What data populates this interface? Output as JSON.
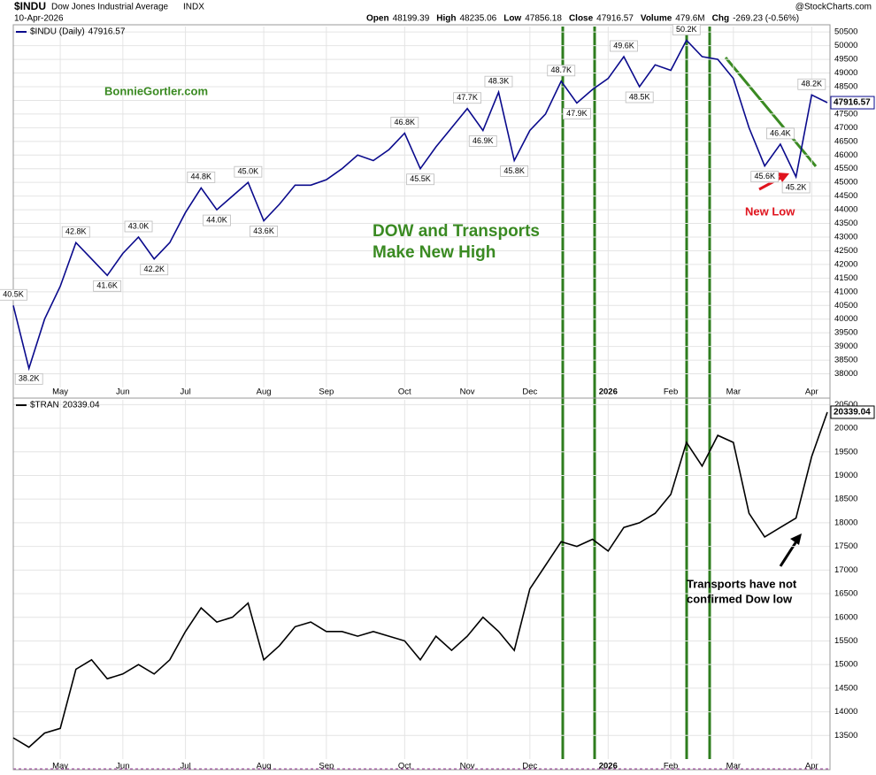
{
  "header": {
    "symbol": "$INDU",
    "name": "Dow Jones Industrial Average",
    "exchange": "INDX",
    "date": "10-Apr-2026",
    "source": "@StockCharts.com",
    "quote": [
      {
        "label": "Open",
        "value": 48199.39
      },
      {
        "label": "High",
        "value": 48235.06
      },
      {
        "label": "Low",
        "value": 47856.18
      },
      {
        "label": "Close",
        "value": 47916.57
      },
      {
        "label": "Volume",
        "value": "479.6M"
      },
      {
        "label": "Chg",
        "value": "-269.23 (-0.56%)"
      }
    ]
  },
  "chart_data": [
    {
      "type": "line",
      "categories": [
        null,
        null,
        null,
        "May",
        null,
        null,
        null,
        "Jun",
        null,
        null,
        null,
        "Jul",
        null,
        null,
        null,
        null,
        "Aug",
        null,
        null,
        null,
        "Sep",
        null,
        null,
        null,
        null,
        "Oct",
        null,
        null,
        null,
        "Nov",
        null,
        null,
        null,
        "Dec",
        null,
        null,
        null,
        null,
        "2026",
        null,
        null,
        null,
        "Feb",
        null,
        null,
        null,
        "Mar",
        null,
        null,
        null,
        null,
        "Apr",
        null
      ],
      "series": [
        {
          "name": "$INDU (Daily)",
          "color": "#0a0a8c",
          "values": [
            40500,
            38200,
            40000,
            41200,
            42800,
            42200,
            41600,
            42400,
            43000,
            42200,
            42800,
            43900,
            44800,
            44000,
            44500,
            45000,
            43600,
            44200,
            44900,
            44900,
            45100,
            45500,
            46000,
            45800,
            46200,
            46800,
            45500,
            46300,
            47000,
            47700,
            46900,
            48300,
            45800,
            46900,
            47500,
            48700,
            47900,
            48400,
            48800,
            49600,
            48500,
            49300,
            49100,
            50200,
            49600,
            49500,
            48800,
            47000,
            45600,
            46400,
            45200,
            48200,
            47916.57
          ],
          "value_labels": [
            "40.5K",
            "38.2K",
            null,
            null,
            "42.8K",
            null,
            "41.6K",
            null,
            "43.0K",
            "42.2K",
            null,
            null,
            "44.8K",
            "44.0K",
            null,
            "45.0K",
            "43.6K",
            null,
            null,
            null,
            null,
            null,
            null,
            null,
            null,
            "46.8K",
            "45.5K",
            null,
            null,
            "47.7K",
            "46.9K",
            "48.3K",
            "45.8K",
            null,
            null,
            "48.7K",
            "47.9K",
            null,
            null,
            "49.6K",
            "48.5K",
            null,
            null,
            "50.2K",
            null,
            null,
            null,
            null,
            "45.6K",
            "46.4K",
            "45.2K",
            "48.2K",
            null
          ]
        }
      ],
      "ylim": [
        37500,
        50700
      ],
      "yticks": [
        38000,
        38500,
        39000,
        39500,
        40000,
        40500,
        41000,
        41500,
        42000,
        42500,
        43000,
        43500,
        44000,
        44500,
        45000,
        45500,
        46000,
        46500,
        47000,
        47500,
        48000,
        48500,
        49000,
        49500,
        50000,
        50500
      ],
      "grid": true,
      "annotations": [
        "BonnieGortler.com",
        "DOW and Transports",
        "Make New High",
        "New Low"
      ]
    },
    {
      "type": "line",
      "categories": [
        null,
        null,
        null,
        "May",
        null,
        null,
        null,
        "Jun",
        null,
        null,
        null,
        "Jul",
        null,
        null,
        null,
        null,
        "Aug",
        null,
        null,
        null,
        "Sep",
        null,
        null,
        null,
        null,
        "Oct",
        null,
        null,
        null,
        "Nov",
        null,
        null,
        null,
        "Dec",
        null,
        null,
        null,
        null,
        "2026",
        null,
        null,
        null,
        "Feb",
        null,
        null,
        null,
        "Mar",
        null,
        null,
        null,
        null,
        "Apr",
        null
      ],
      "series": [
        {
          "name": "$TRAN",
          "color": "#000000",
          "values": [
            13450,
            13250,
            13550,
            13650,
            14900,
            15100,
            14700,
            14800,
            15000,
            14800,
            15100,
            15700,
            16200,
            15900,
            16000,
            16300,
            15100,
            15400,
            15800,
            15900,
            15700,
            15700,
            15600,
            15700,
            15600,
            15500,
            15100,
            15600,
            15300,
            15600,
            16000,
            15700,
            15300,
            16600,
            17100,
            17600,
            17500,
            17650,
            17400,
            17900,
            18000,
            18200,
            18600,
            19700,
            19200,
            19850,
            19700,
            18200,
            17700,
            17900,
            18100,
            19400,
            20339.04
          ]
        }
      ],
      "ylim": [
        13000,
        20600
      ],
      "yticks": [
        13500,
        14000,
        14500,
        15000,
        15500,
        16000,
        16500,
        17000,
        17500,
        18000,
        18500,
        19000,
        19500,
        20000,
        20500
      ],
      "grid": true,
      "annotations": [
        "Transports have not",
        "confirmed Dow low"
      ]
    }
  ]
}
